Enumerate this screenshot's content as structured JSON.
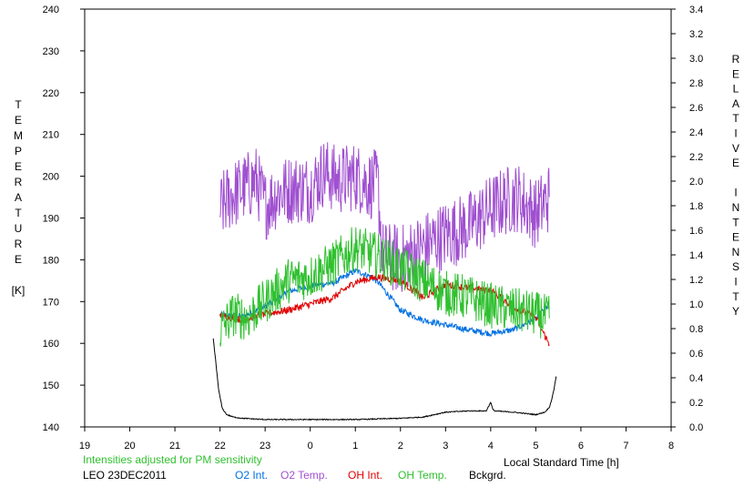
{
  "chart_data": {
    "type": "line",
    "xlabel": "Local Standard Time [h]",
    "x_ticks": [
      "19",
      "20",
      "21",
      "22",
      "23",
      "0",
      "1",
      "2",
      "3",
      "4",
      "5",
      "6",
      "7",
      "8"
    ],
    "xlim": [
      19,
      32
    ],
    "y_left": {
      "label_letters": [
        "T",
        "E",
        "M",
        "P",
        "E",
        "R",
        "A",
        "T",
        "U",
        "R",
        "E",
        "",
        "[K]"
      ],
      "ticks": [
        "140",
        "150",
        "160",
        "170",
        "180",
        "190",
        "200",
        "210",
        "220",
        "230",
        "240"
      ],
      "lim": [
        140,
        240
      ]
    },
    "y_right": {
      "label_letters": [
        "R",
        "E",
        "L",
        "A",
        "T",
        "I",
        "V",
        "E",
        "",
        "I",
        "N",
        "T",
        "E",
        "N",
        "S",
        "I",
        "T",
        "Y"
      ],
      "ticks": [
        "0.0",
        "0.2",
        "0.4",
        "0.6",
        "0.8",
        "1.0",
        "1.2",
        "1.4",
        "1.6",
        "1.8",
        "2.0",
        "2.2",
        "2.4",
        "2.6",
        "2.8",
        "3.0",
        "3.2",
        "3.4"
      ],
      "lim": [
        0,
        3.4
      ]
    },
    "note": "Intensities adjusted for PM sensitivity",
    "station_date": "LEO 23DEC2011",
    "colors": {
      "O2 Int.": "#0070e0",
      "O2 Temp.": "#a050d0",
      "OH Int.": "#e00000",
      "OH Temp.": "#30c030",
      "Bckgrd.": "#000000",
      "note": "#30c030"
    },
    "series": [
      {
        "name": "O2 Int.",
        "axis": "right",
        "x": [
          22.0,
          22.5,
          23.0,
          23.5,
          24.0,
          24.5,
          25.0,
          25.3,
          25.5,
          26.0,
          26.5,
          27.0,
          27.5,
          28.0,
          28.5,
          29.0,
          29.3
        ],
        "y": [
          0.91,
          0.9,
          0.98,
          1.1,
          1.15,
          1.17,
          1.27,
          1.23,
          1.18,
          0.95,
          0.87,
          0.83,
          0.79,
          0.76,
          0.79,
          0.88,
          1.0
        ]
      },
      {
        "name": "O2 Temp.",
        "axis": "left",
        "x": [
          22.0,
          22.2,
          22.5,
          22.8,
          23.0,
          23.3,
          23.6,
          24.0,
          24.3,
          24.6,
          25.0,
          25.3,
          25.5,
          25.6,
          26.0,
          26.5,
          27.0,
          27.5,
          28.0,
          28.3,
          28.6,
          29.0,
          29.3
        ],
        "y": [
          192,
          195,
          197,
          199,
          193,
          196,
          197,
          197,
          201,
          199,
          200,
          198,
          198,
          181,
          180,
          183,
          186,
          188,
          192,
          194,
          195,
          191,
          195
        ]
      },
      {
        "name": "OH Int.",
        "axis": "right",
        "x": [
          22.0,
          22.5,
          23.0,
          23.5,
          24.0,
          24.5,
          25.0,
          25.5,
          26.0,
          26.5,
          27.0,
          27.5,
          28.0,
          28.5,
          29.0,
          29.3
        ],
        "y": [
          0.91,
          0.87,
          0.92,
          0.95,
          1.0,
          1.05,
          1.18,
          1.22,
          1.19,
          1.05,
          1.16,
          1.13,
          1.11,
          0.98,
          0.89,
          0.67
        ]
      },
      {
        "name": "OH Temp.",
        "axis": "left",
        "x": [
          22.0,
          22.3,
          22.6,
          23.0,
          23.5,
          24.0,
          24.5,
          25.0,
          25.5,
          26.0,
          26.5,
          27.0,
          27.5,
          28.0,
          28.5,
          29.0,
          29.3
        ],
        "y": [
          163,
          167,
          166,
          170,
          175,
          176,
          179,
          183,
          181,
          178,
          175,
          172,
          171,
          169,
          168,
          167,
          166
        ]
      },
      {
        "name": "Bckgrd.",
        "axis": "right",
        "x": [
          21.85,
          21.9,
          21.97,
          22.05,
          22.15,
          22.3,
          22.5,
          23.0,
          24.0,
          25.0,
          26.0,
          26.5,
          27.0,
          27.5,
          27.9,
          28.0,
          28.05,
          28.1,
          28.5,
          29.0,
          29.2,
          29.3,
          29.35,
          29.4,
          29.45
        ],
        "y": [
          0.72,
          0.55,
          0.3,
          0.15,
          0.1,
          0.08,
          0.07,
          0.06,
          0.06,
          0.06,
          0.07,
          0.08,
          0.12,
          0.13,
          0.13,
          0.2,
          0.14,
          0.13,
          0.12,
          0.1,
          0.12,
          0.16,
          0.22,
          0.3,
          0.41
        ]
      }
    ]
  }
}
